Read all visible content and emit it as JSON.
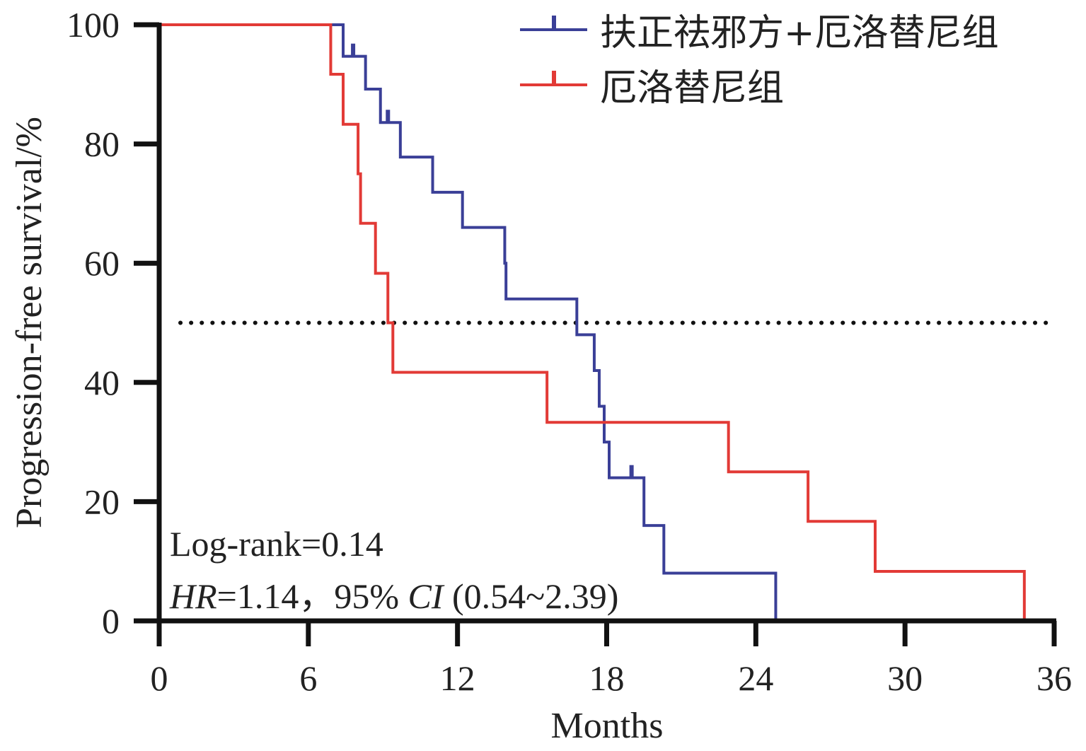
{
  "chart_data": {
    "type": "line",
    "subtype": "kaplan-meier step",
    "title": "",
    "xlabel": "Months",
    "ylabel": "Progression-free survival/%",
    "xlim": [
      0,
      36
    ],
    "ylim": [
      0,
      100
    ],
    "xticks": [
      0,
      6,
      12,
      18,
      24,
      30,
      36
    ],
    "yticks": [
      0,
      20,
      40,
      60,
      80,
      100
    ],
    "xtick_labels": [
      "0",
      "6",
      "12",
      "18",
      "24",
      "30",
      "36"
    ],
    "ytick_labels": [
      "0",
      "20",
      "40",
      "60",
      "80",
      "100"
    ],
    "reference_line": {
      "y": 50,
      "style": "dotted",
      "color": "#111111"
    },
    "legend_position": "top-right",
    "series": [
      {
        "name": "扶正祛邪方+厄洛替尼组",
        "color": "#3a3f97",
        "steps": [
          [
            0,
            100
          ],
          [
            7.4,
            94.7
          ],
          [
            8.3,
            89.2
          ],
          [
            8.9,
            83.6
          ],
          [
            9.7,
            77.8
          ],
          [
            11.0,
            71.9
          ],
          [
            12.2,
            66.0
          ],
          [
            13.9,
            60.0
          ],
          [
            13.95,
            54.0
          ],
          [
            16.8,
            48.0
          ],
          [
            17.5,
            42.0
          ],
          [
            17.7,
            36.0
          ],
          [
            17.9,
            30.0
          ],
          [
            18.1,
            24.0
          ],
          [
            19.5,
            16.0
          ],
          [
            20.3,
            8.0
          ],
          [
            24.8,
            0
          ]
        ],
        "end_x": 24.8,
        "censored": [
          [
            7.8,
            94.7
          ],
          [
            9.2,
            83.6
          ],
          [
            19.0,
            24.0
          ]
        ]
      },
      {
        "name": "厄洛替尼组",
        "color": "#e23a36",
        "steps": [
          [
            0,
            100
          ],
          [
            6.9,
            91.7
          ],
          [
            7.4,
            83.3
          ],
          [
            8.0,
            75.0
          ],
          [
            8.1,
            66.7
          ],
          [
            8.7,
            58.3
          ],
          [
            9.2,
            50.0
          ],
          [
            9.4,
            41.7
          ],
          [
            15.6,
            33.3
          ],
          [
            22.9,
            25.0
          ],
          [
            26.1,
            16.7
          ],
          [
            28.8,
            8.3
          ],
          [
            34.8,
            0
          ]
        ],
        "end_x": 34.8,
        "censored": []
      }
    ],
    "annotations": {
      "logrank": "Log-rank=0.14",
      "hr_label": "HR",
      "hr_value": "=1.14，95% ",
      "ci_label": "CI",
      "ci_value": " (0.54~2.39)"
    }
  }
}
